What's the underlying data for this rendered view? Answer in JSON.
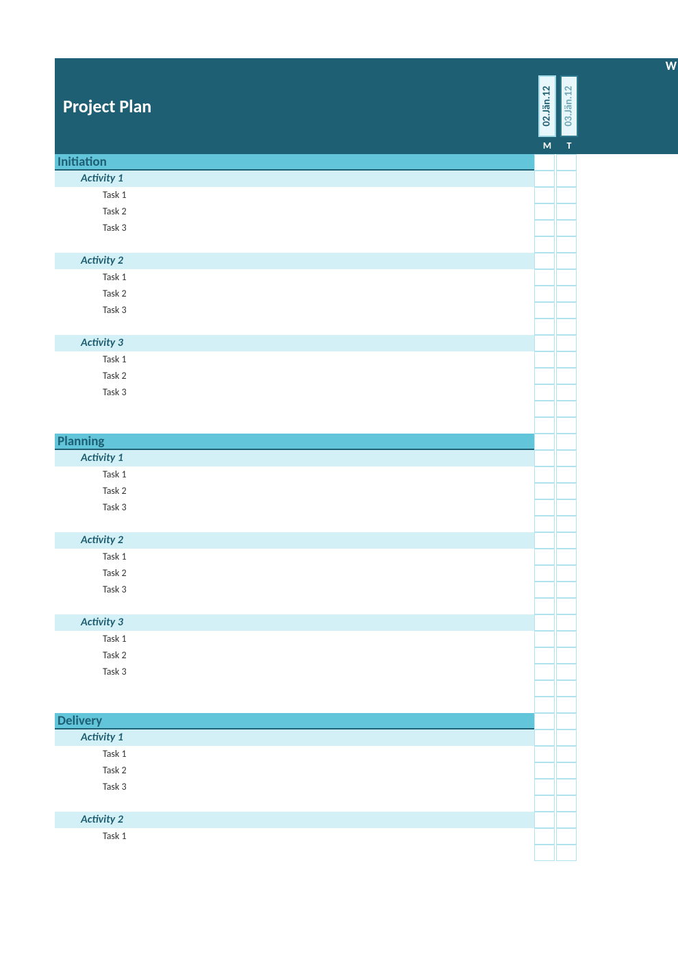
{
  "title": "Project Plan",
  "week_label": "W",
  "colors": {
    "header_bg": "#1e5f73",
    "date_box_bg": "#e8f7fb",
    "date_border": "#9fd9e6",
    "date_border_alt": "#2f7a8e",
    "date_alt_text": "#6fa8b5",
    "phase_bg": "#62c5d9",
    "phase_underline": "#1e5f73",
    "phase_text": "#1e5f73",
    "activity_bg": "#d4f0f7",
    "activity_text": "#1e5f73",
    "task_text": "#333333",
    "grid_border": "#aee3ef"
  },
  "date_columns": [
    {
      "date": "02.Jän.12",
      "day": "M",
      "alt": false
    },
    {
      "date": "03.Jän.12",
      "day": "T",
      "alt": true
    }
  ],
  "phases": [
    {
      "name": "Initiation",
      "activities": [
        {
          "name": "Activity 1",
          "tasks": [
            "Task 1",
            "Task 2",
            "Task 3"
          ]
        },
        {
          "name": "Activity 2",
          "tasks": [
            "Task 1",
            "Task 2",
            "Task 3"
          ]
        },
        {
          "name": "Activity 3",
          "tasks": [
            "Task 1",
            "Task 2",
            "Task 3"
          ]
        }
      ],
      "trailing_spacers": 2
    },
    {
      "name": "Planning",
      "activities": [
        {
          "name": "Activity 1",
          "tasks": [
            "Task 1",
            "Task 2",
            "Task 3"
          ]
        },
        {
          "name": "Activity 2",
          "tasks": [
            "Task 1",
            "Task 2",
            "Task 3"
          ]
        },
        {
          "name": "Activity 3",
          "tasks": [
            "Task 1",
            "Task 2",
            "Task 3"
          ]
        }
      ],
      "trailing_spacers": 2
    },
    {
      "name": "Delivery",
      "activities": [
        {
          "name": "Activity 1",
          "tasks": [
            "Task 1",
            "Task 2",
            "Task 3"
          ]
        },
        {
          "name": "Activity 2",
          "tasks": [
            "Task 1"
          ]
        }
      ],
      "trailing_spacers": 0
    }
  ]
}
